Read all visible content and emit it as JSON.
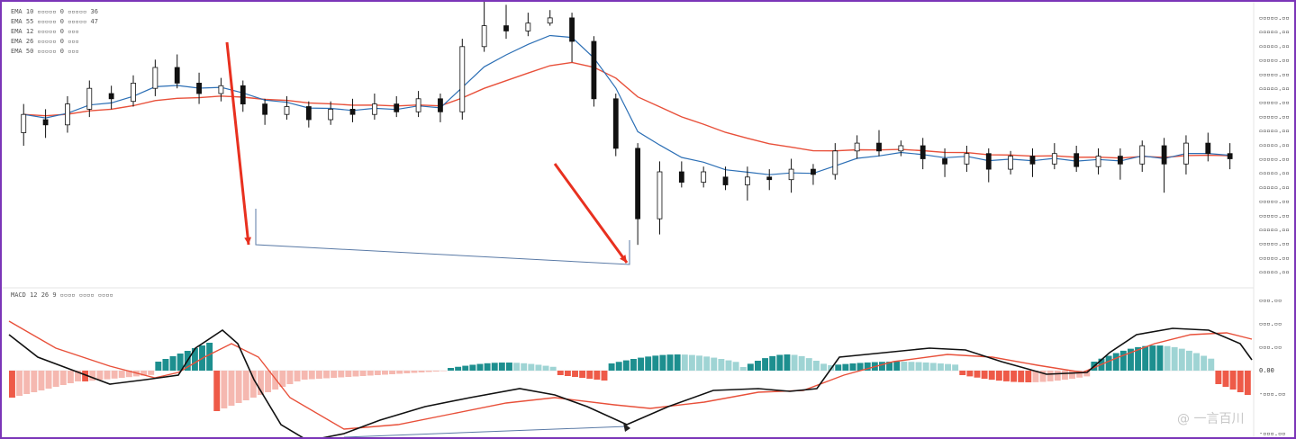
{
  "chart_data": [
    {
      "type": "candlestick",
      "panel": "price",
      "legend": [
        {
          "label": "EMA 10 ▫▫▫▫▫ 0 ▫▫▫▫▫ 36",
          "color": "#2c6fb5"
        },
        {
          "label": "EMA 55 ▫▫▫▫▫ 0 ▫▫▫▫▫ 47",
          "color": "#e8503a"
        },
        {
          "label": "EMA 12 ▫▫▫▫▫ 0 ▫▫▫",
          "color": "#999999"
        },
        {
          "label": "EMA 26 ▫▫▫▫▫ 0 ▫▫▫",
          "color": "#999999"
        },
        {
          "label": "EMA 50 ▫▫▫▫▫ 0 ▫▫▫",
          "color": "#999999"
        }
      ],
      "y_tick_labels": [
        "▫▫▫▫▫.▫▫",
        "▫▫▫▫▫.▫▫",
        "▫▫▫▫▫.▫▫",
        "▫▫▫▫▫.▫▫",
        "▫▫▫▫▫.▫▫",
        "▫▫▫▫▫.▫▫",
        "▫▫▫▫▫.▫▫",
        "▫▫▫▫▫.▫▫",
        "▫▫▫▫▫.▫▫",
        "▫▫▫▫▫.▫▫",
        "▫▫▫▫▫.▫▫",
        "▫▫▫▫▫.▫▫",
        "▫▫▫▫▫.▫▫",
        "▫▫▫▫▫.▫▫",
        "▫▫▫▫▫.▫▫",
        "▫▫▫▫▫.▫▫",
        "▫▫▫▫▫.▫▫",
        "▫▫▫▫▫.▫▫",
        "▫▫▫▫▫.▫▫"
      ],
      "ylim": [
        0,
        100
      ],
      "x_count": 170,
      "candles": [
        [
          2,
          55,
          62,
          66,
          50
        ],
        [
          5,
          60,
          58,
          64,
          53
        ],
        [
          8,
          58,
          66,
          69,
          55
        ],
        [
          11,
          64,
          72,
          75,
          61
        ],
        [
          14,
          70,
          68,
          73,
          64
        ],
        [
          17,
          67,
          74,
          77,
          65
        ],
        [
          20,
          72,
          80,
          83,
          69
        ],
        [
          23,
          80,
          74,
          85,
          72
        ],
        [
          26,
          74,
          70,
          78,
          66
        ],
        [
          29,
          70,
          73,
          76,
          67
        ],
        [
          32,
          73,
          66,
          75,
          63
        ],
        [
          35,
          66,
          62,
          68,
          58
        ],
        [
          38,
          62,
          65,
          69,
          60
        ],
        [
          41,
          65,
          60,
          67,
          57
        ],
        [
          44,
          60,
          64,
          67,
          58
        ],
        [
          47,
          64,
          62,
          68,
          59
        ],
        [
          50,
          62,
          66,
          70,
          60
        ],
        [
          53,
          66,
          63,
          69,
          61
        ],
        [
          56,
          63,
          68,
          71,
          61
        ],
        [
          59,
          68,
          63,
          70,
          59
        ],
        [
          62,
          63,
          88,
          91,
          60
        ],
        [
          65,
          88,
          96,
          106,
          86
        ],
        [
          68,
          96,
          94,
          104,
          91
        ],
        [
          71,
          94,
          97,
          101,
          92
        ],
        [
          74,
          97,
          99,
          102,
          96
        ],
        [
          77,
          99,
          90,
          101,
          82
        ],
        [
          80,
          90,
          68,
          92,
          65
        ],
        [
          83,
          68,
          49,
          70,
          46
        ],
        [
          86,
          49,
          22,
          51,
          12
        ],
        [
          89,
          22,
          40,
          44,
          16
        ],
        [
          92,
          40,
          36,
          44,
          34
        ],
        [
          95,
          36,
          40,
          42,
          34
        ],
        [
          98,
          38,
          35,
          42,
          33
        ],
        [
          101,
          35,
          38,
          42,
          29
        ],
        [
          104,
          38,
          37,
          41,
          33
        ],
        [
          107,
          37,
          41,
          45,
          32
        ],
        [
          110,
          41,
          39,
          43,
          35
        ],
        [
          113,
          39,
          48,
          51,
          37
        ],
        [
          116,
          48,
          51,
          54,
          45
        ],
        [
          119,
          51,
          48,
          56,
          46
        ],
        [
          122,
          48,
          50,
          52,
          46
        ],
        [
          125,
          50,
          45,
          53,
          41
        ],
        [
          128,
          45,
          43,
          49,
          38
        ],
        [
          131,
          43,
          47,
          50,
          40
        ],
        [
          134,
          47,
          41,
          49,
          36
        ],
        [
          137,
          41,
          46,
          48,
          39
        ],
        [
          140,
          46,
          43,
          49,
          38
        ],
        [
          143,
          43,
          47,
          51,
          41
        ],
        [
          146,
          47,
          42,
          50,
          40
        ],
        [
          149,
          42,
          46,
          49,
          39
        ],
        [
          152,
          46,
          43,
          49,
          37
        ],
        [
          155,
          43,
          50,
          52,
          40
        ],
        [
          158,
          50,
          43,
          53,
          32
        ],
        [
          161,
          43,
          51,
          54,
          39
        ],
        [
          164,
          51,
          47,
          55,
          44
        ],
        [
          167,
          47,
          45,
          51,
          41
        ]
      ],
      "series": [
        {
          "name": "EMA 10",
          "color": "#2c6fb5"
        },
        {
          "name": "EMA 55",
          "color": "#e8503a"
        }
      ],
      "annotations": [
        "red arrow down",
        "red arrow down",
        "blue divergence line"
      ]
    },
    {
      "type": "macd",
      "panel": "indicator",
      "legend_text": "MACD 12 26 9 ▫▫▫▫ ▫▫▫▫ ▫▫▫▫",
      "y_tick_labels": [
        "▫▫▫.▫▫",
        "▫▫▫.▫▫",
        "▫▫▫.▫▫",
        "0.00",
        "-▫▫▫.▫▫",
        "-▫▫▫.▫▫"
      ],
      "ylim": [
        -100,
        100
      ],
      "colors": {
        "hist_pos_strong": "#1d8f8f",
        "hist_pos_weak": "#9fd4d4",
        "hist_neg_strong": "#ee5a48",
        "hist_neg_weak": "#f5b8b0",
        "macd": "#111111",
        "signal": "#e8503a"
      }
    }
  ],
  "watermark": "@ 一言百川"
}
